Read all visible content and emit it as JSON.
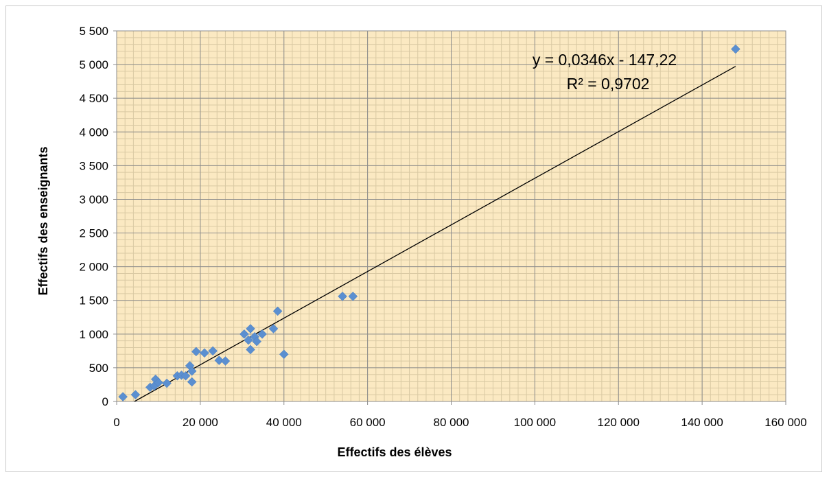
{
  "chart_data": {
    "type": "scatter",
    "xlabel": "Effectifs des élèves",
    "ylabel": "Effectifs des enseignants",
    "xlim": [
      0,
      160000
    ],
    "ylim": [
      0,
      5500
    ],
    "x_ticks": [
      0,
      20000,
      40000,
      60000,
      80000,
      100000,
      120000,
      140000,
      160000
    ],
    "x_tick_labels": [
      "0",
      "20 000",
      "40 000",
      "60 000",
      "80 000",
      "100 000",
      "120 000",
      "140 000",
      "160 000"
    ],
    "y_ticks": [
      0,
      500,
      1000,
      1500,
      2000,
      2500,
      3000,
      3500,
      4000,
      4500,
      5000,
      5500
    ],
    "y_tick_labels": [
      "0",
      "500",
      "1 000",
      "1 500",
      "2 000",
      "2 500",
      "3 000",
      "3 500",
      "4 000",
      "4 500",
      "5 000",
      "5 500"
    ],
    "grid": true,
    "colors": {
      "points": "#5b8fd0",
      "plot_background": "#fbe9c2",
      "major_grid": "#8c8c8c",
      "minor_grid": "#d9c9a3",
      "trendline": "#000000"
    },
    "points": [
      {
        "x": 1500,
        "y": 70
      },
      {
        "x": 4500,
        "y": 100
      },
      {
        "x": 8000,
        "y": 210
      },
      {
        "x": 9000,
        "y": 230
      },
      {
        "x": 9300,
        "y": 330
      },
      {
        "x": 10000,
        "y": 280
      },
      {
        "x": 12000,
        "y": 270
      },
      {
        "x": 14500,
        "y": 380
      },
      {
        "x": 15500,
        "y": 390
      },
      {
        "x": 16500,
        "y": 380
      },
      {
        "x": 17500,
        "y": 530
      },
      {
        "x": 18000,
        "y": 450
      },
      {
        "x": 18000,
        "y": 290
      },
      {
        "x": 19000,
        "y": 740
      },
      {
        "x": 21000,
        "y": 720
      },
      {
        "x": 23000,
        "y": 750
      },
      {
        "x": 24500,
        "y": 610
      },
      {
        "x": 26000,
        "y": 600
      },
      {
        "x": 30500,
        "y": 1000
      },
      {
        "x": 31500,
        "y": 910
      },
      {
        "x": 32000,
        "y": 1080
      },
      {
        "x": 32000,
        "y": 770
      },
      {
        "x": 33000,
        "y": 960
      },
      {
        "x": 33500,
        "y": 890
      },
      {
        "x": 34800,
        "y": 1000
      },
      {
        "x": 37500,
        "y": 1080
      },
      {
        "x": 38500,
        "y": 1340
      },
      {
        "x": 40000,
        "y": 700
      },
      {
        "x": 54000,
        "y": 1560
      },
      {
        "x": 56500,
        "y": 1560
      },
      {
        "x": 148000,
        "y": 5230
      }
    ],
    "trendline": {
      "slope": 0.0346,
      "intercept": -147.22,
      "x_range": [
        4255,
        148000
      ]
    },
    "annotations": [
      "y = 0,0346x - 147,22",
      "R² = 0,9702"
    ]
  }
}
